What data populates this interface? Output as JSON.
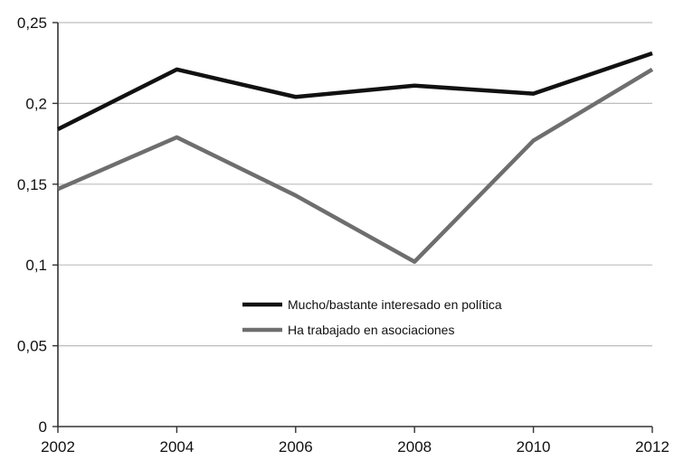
{
  "chart_data": {
    "type": "line",
    "title": "",
    "xlabel": "",
    "ylabel": "",
    "x": [
      2002,
      2004,
      2006,
      2008,
      2010,
      2012
    ],
    "x_tick_labels": [
      "2002",
      "2004",
      "2006",
      "2008",
      "2010",
      "2012"
    ],
    "ylim": [
      0,
      0.25
    ],
    "y_ticks": [
      0,
      0.05,
      0.1,
      0.15,
      0.2,
      0.25
    ],
    "y_tick_labels": [
      "0",
      "0,05",
      "0,1",
      "0,15",
      "0,2",
      "0,25"
    ],
    "grid": "horizontal",
    "legend_position": "lower-center",
    "series": [
      {
        "name": "Mucho/bastante interesado en política",
        "color": "#111111",
        "values": [
          0.184,
          0.221,
          0.204,
          0.211,
          0.206,
          0.231
        ]
      },
      {
        "name": "Ha trabajado en asociaciones",
        "color": "#6e6e6e",
        "values": [
          0.147,
          0.179,
          0.143,
          0.102,
          0.177,
          0.221
        ]
      }
    ]
  }
}
